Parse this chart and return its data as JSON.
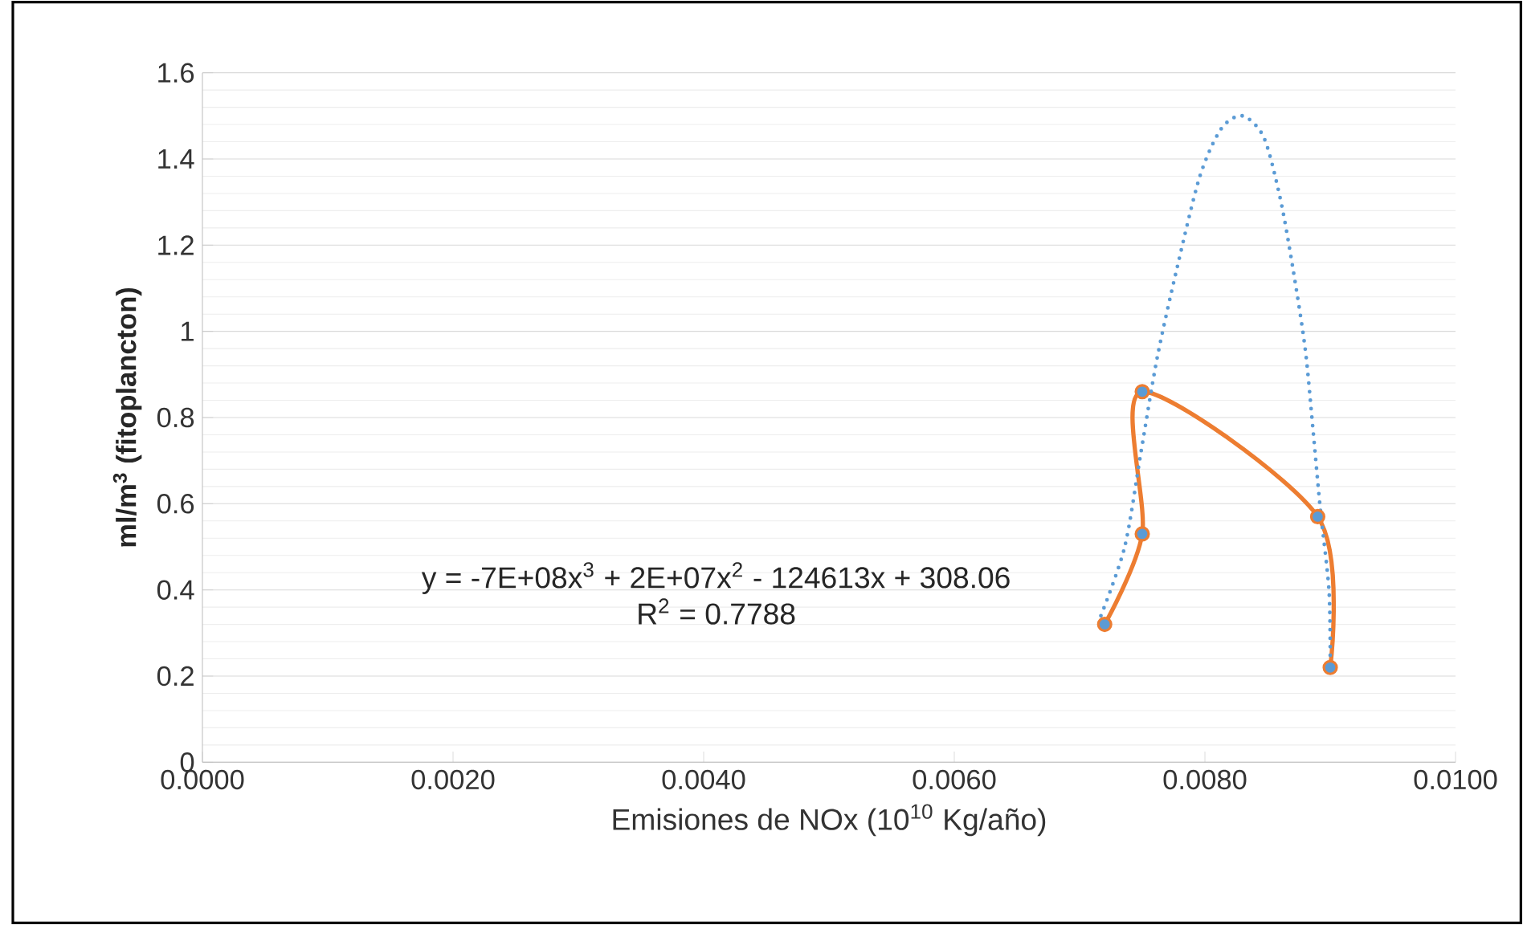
{
  "chart_data": {
    "type": "line",
    "xlabel": "Emisiones de NOx (10$^{10}$ Kg/año)",
    "ylabel": "ml/m$^{3}$ (fitoplancton)",
    "x": [
      0.0072,
      0.0075,
      0.0075,
      0.0089,
      0.009
    ],
    "series": [
      {
        "color": "#ed7d31",
        "values": [
          0.32,
          0.53,
          0.86,
          0.57,
          0.22
        ],
        "marker": "circle"
      },
      {
        "type": "line",
        "color": "#5b9bd5",
        "line_style": "dotted",
        "marker": "none",
        "x": [
          0.00717,
          0.00736,
          0.00749,
          0.00762,
          0.00778,
          0.00796,
          0.00813,
          0.0083,
          0.00847,
          0.0086,
          0.0087,
          0.0088,
          0.00886,
          0.00892,
          0.00899,
          0.009
        ],
        "values": [
          0.34,
          0.5,
          0.72,
          0.94,
          1.15,
          1.36,
          1.47,
          1.5,
          1.45,
          1.31,
          1.15,
          0.96,
          0.78,
          0.59,
          0.4,
          0.24
        ]
      }
    ],
    "xlim": [
      0,
      0.01
    ],
    "xticks": [
      {
        "value": 0,
        "label": "0.0000"
      },
      {
        "value": 0.002,
        "label": "0.0020"
      },
      {
        "value": 0.004,
        "label": "0.0040"
      },
      {
        "value": 0.006,
        "label": "0.0060"
      },
      {
        "value": 0.008,
        "label": "0.0080"
      },
      {
        "value": 0.01,
        "label": "0.0100"
      }
    ],
    "ylim": [
      0,
      1.6
    ],
    "yticks": [
      0,
      0.2,
      0.4,
      0.6,
      0.8,
      1,
      1.2,
      1.4,
      1.6
    ],
    "grid": "y",
    "annotations": [
      "y = -7E+08x$^{3}$ + 2E+07x$^{2}$ - 124613x + 308.06",
      "R$^{2}$ = 0.7788"
    ]
  }
}
